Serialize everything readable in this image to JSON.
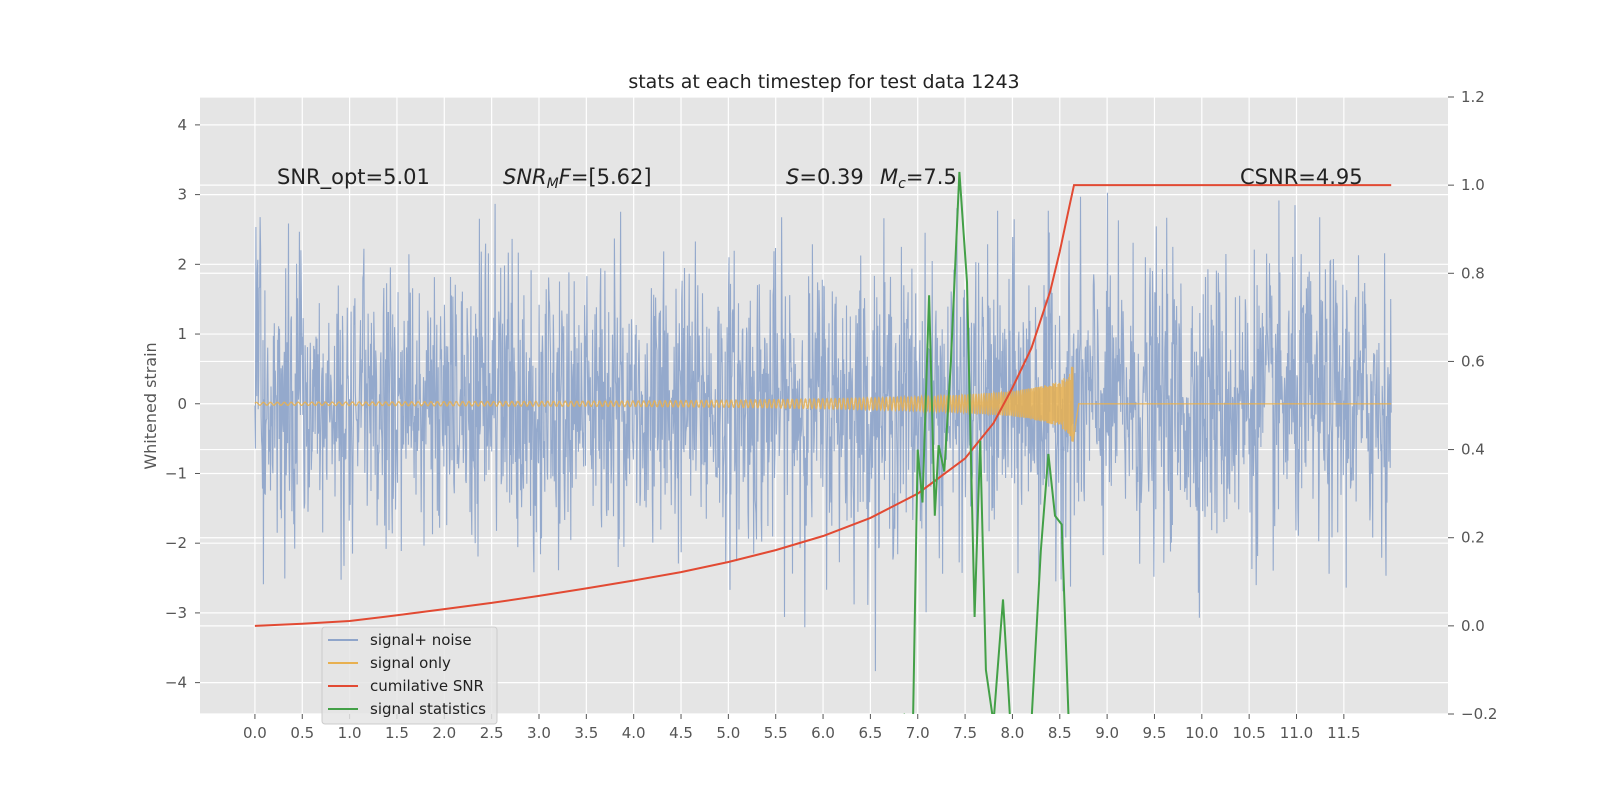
{
  "chart_data": {
    "type": "line",
    "title": "stats at each timestep for test data 1243",
    "ylabel": "Whitened strain",
    "xlabel": "",
    "xlim": [
      -0.58,
      12.6
    ],
    "ylim": [
      -4.45,
      4.4
    ],
    "y2lim": [
      -0.2,
      1.2
    ],
    "xticks": [
      0.0,
      0.5,
      1.0,
      1.5,
      2.0,
      2.5,
      3.0,
      3.5,
      4.0,
      4.5,
      5.0,
      5.5,
      6.0,
      6.5,
      7.0,
      7.5,
      8.0,
      8.5,
      9.0,
      9.5,
      10.0,
      10.5,
      11.0,
      11.5
    ],
    "xtick_labels": [
      "0.0",
      "0.5",
      "1.0",
      "1.5",
      "2.0",
      "2.5",
      "3.0",
      "3.5",
      "4.0",
      "4.5",
      "5.0",
      "5.5",
      "6.0",
      "6.5",
      "7.0",
      "7.5",
      "8.0",
      "8.5",
      "9.0",
      "9.5",
      "10.0",
      "10.5",
      "11.0",
      "11.5"
    ],
    "yticks": [
      -4,
      -3,
      -2,
      -1,
      0,
      1,
      2,
      3,
      4
    ],
    "ytick_labels": [
      "−4",
      "−3",
      "−2",
      "−1",
      "0",
      "1",
      "2",
      "3",
      "4"
    ],
    "y2ticks": [
      -0.2,
      0.0,
      0.2,
      0.4,
      0.6,
      0.8,
      1.0,
      1.2
    ],
    "y2tick_labels": [
      "−0.2",
      "0.0",
      "0.2",
      "0.4",
      "0.6",
      "0.8",
      "1.0",
      "1.2"
    ],
    "grid": true,
    "legend_position": "bottom-left",
    "annotations": {
      "snr_opt": "SNR_opt=5.01",
      "snr_mf_main": "SNR",
      "snr_mf_sub": "M",
      "snr_mf_rest": "F=[5.62]",
      "s_main": "S",
      "s_rest": "=0.39",
      "mc_main": "M",
      "mc_sub": "c",
      "mc_rest": "=7.5",
      "csnr": "CSNR=4.95"
    },
    "colors": {
      "background": "#e5e5e5",
      "grid": "#ffffff",
      "noise": "#8fa5ca",
      "signal": "#e8b050",
      "snr": "#e24a33",
      "stats": "#43a047"
    },
    "series": [
      {
        "name": "signal+ noise",
        "axis": "left",
        "description_samples": "noisy whitened strain, roughly |y| ≤ 2 with spikes to ±4",
        "x_range": [
          0.0,
          12.0
        ],
        "amplitude_range": [
          -4.05,
          4.02
        ]
      },
      {
        "name": "signal only",
        "axis": "left",
        "x_range": [
          0.0,
          8.64
        ],
        "envelope": {
          "x": [
            0.0,
            2.0,
            4.0,
            5.0,
            6.0,
            7.0,
            7.5,
            8.0,
            8.3,
            8.5,
            8.6,
            8.64,
            8.66
          ],
          "amp": [
            0.02,
            0.03,
            0.04,
            0.05,
            0.07,
            0.1,
            0.13,
            0.18,
            0.25,
            0.33,
            0.45,
            0.58,
            0.0
          ]
        }
      },
      {
        "name": "cumilative SNR",
        "axis": "right",
        "x": [
          0.0,
          0.5,
          1.0,
          1.5,
          2.0,
          2.5,
          3.0,
          3.5,
          4.0,
          4.5,
          5.0,
          5.5,
          6.0,
          6.5,
          7.0,
          7.5,
          7.8,
          8.0,
          8.2,
          8.4,
          8.5,
          8.6,
          8.65,
          12.0
        ],
        "values": [
          0.0,
          0.005,
          0.011,
          0.024,
          0.038,
          0.052,
          0.068,
          0.085,
          0.103,
          0.122,
          0.145,
          0.172,
          0.204,
          0.245,
          0.3,
          0.38,
          0.46,
          0.54,
          0.63,
          0.76,
          0.85,
          0.95,
          1.0,
          1.0
        ]
      },
      {
        "name": "signal statistics",
        "axis": "right",
        "x": [
          6.85,
          6.95,
          7.0,
          7.05,
          7.12,
          7.18,
          7.22,
          7.28,
          7.35,
          7.44,
          7.52,
          7.6,
          7.66,
          7.72,
          7.8,
          7.9,
          8.0,
          8.1,
          8.2,
          8.3,
          8.38,
          8.45,
          8.52,
          8.6
        ],
        "values": [
          -0.2,
          -0.22,
          0.4,
          0.28,
          0.75,
          0.25,
          0.41,
          0.35,
          0.6,
          1.03,
          0.78,
          0.02,
          0.42,
          -0.1,
          -0.22,
          0.06,
          -0.3,
          -0.3,
          -0.22,
          0.17,
          0.39,
          0.25,
          0.23,
          -0.25
        ]
      }
    ]
  }
}
